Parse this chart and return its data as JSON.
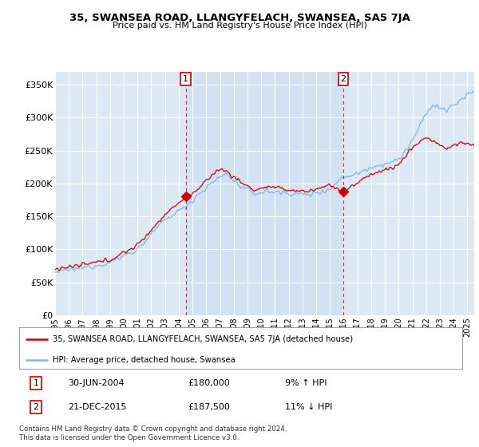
{
  "title": "35, SWANSEA ROAD, LLANGYFELACH, SWANSEA, SA5 7JA",
  "subtitle": "Price paid vs. HM Land Registry's House Price Index (HPI)",
  "background_color": "#ffffff",
  "plot_bg_color": "#dde8f5",
  "plot_bg_color2": "#ccdff0",
  "grid_color": "#ffffff",
  "ylim": [
    0,
    370000
  ],
  "yticks": [
    0,
    50000,
    100000,
    150000,
    200000,
    250000,
    300000,
    350000
  ],
  "ytick_labels": [
    "£0",
    "£50K",
    "£100K",
    "£150K",
    "£200K",
    "£250K",
    "£300K",
    "£350K"
  ],
  "hpi_color": "#7ab8e8",
  "price_color": "#cc0000",
  "sale1_x": 2004.5,
  "sale1_price": 180000,
  "sale2_x": 2015.97,
  "sale2_price": 187500,
  "legend_line1": "35, SWANSEA ROAD, LLANGYFELACH, SWANSEA, SA5 7JA (detached house)",
  "legend_line2": "HPI: Average price, detached house, Swansea",
  "annotation1_date": "30-JUN-2004",
  "annotation1_price": "£180,000",
  "annotation1_hpi": "9% ↑ HPI",
  "annotation2_date": "21-DEC-2015",
  "annotation2_price": "£187,500",
  "annotation2_hpi": "11% ↓ HPI",
  "footer": "Contains HM Land Registry data © Crown copyright and database right 2024.\nThis data is licensed under the Open Government Licence v3.0.",
  "xmin": 1995,
  "xmax": 2025.5
}
